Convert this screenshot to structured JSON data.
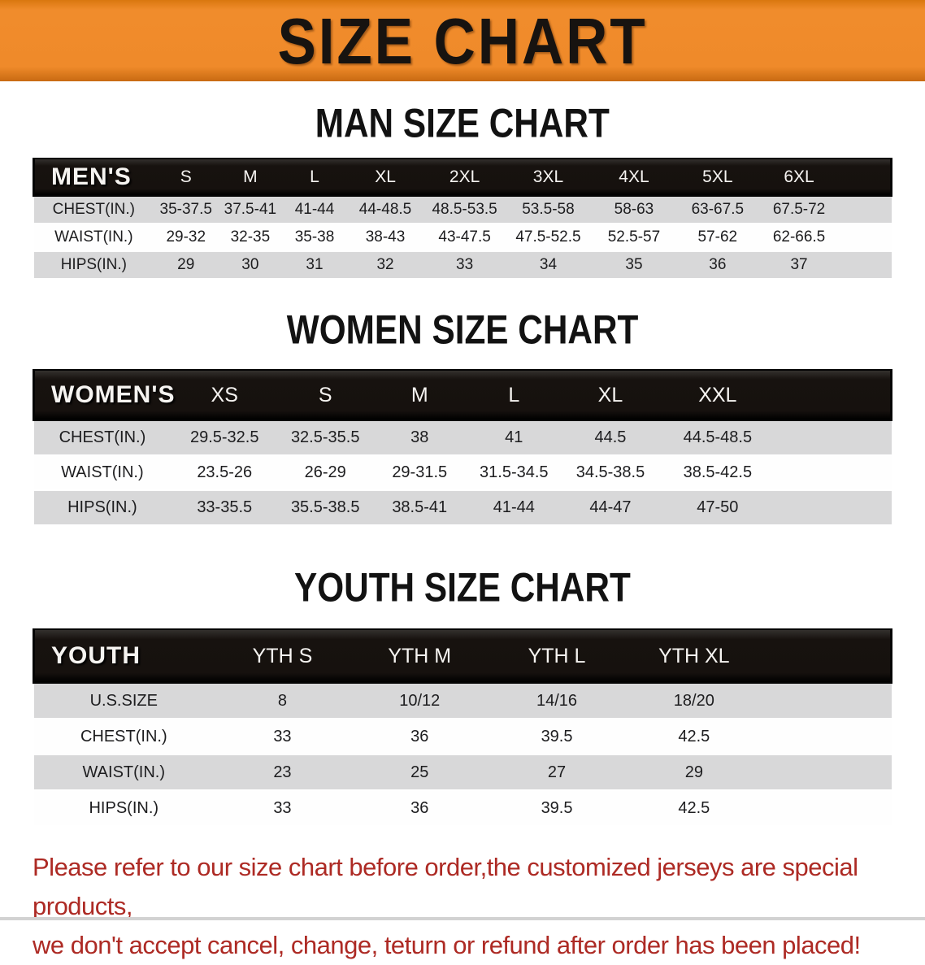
{
  "banner": {
    "title": "SIZE CHART"
  },
  "sections": [
    {
      "heading": "MAN SIZE CHART",
      "header_label": "MEN'S",
      "columns": [
        "S",
        "M",
        "L",
        "XL",
        "2XL",
        "3XL",
        "4XL",
        "5XL",
        "6XL"
      ],
      "rows": [
        {
          "label": "CHEST(IN.)",
          "values": [
            "35-37.5",
            "37.5-41",
            "41-44",
            "44-48.5",
            "48.5-53.5",
            "53.5-58",
            "58-63",
            "63-67.5",
            "67.5-72"
          ]
        },
        {
          "label": "WAIST(IN.)",
          "values": [
            "29-32",
            "32-35",
            "35-38",
            "38-43",
            "43-47.5",
            "47.5-52.5",
            "52.5-57",
            "57-62",
            "62-66.5"
          ]
        },
        {
          "label": "HIPS(IN.)",
          "values": [
            "29",
            "30",
            "31",
            "32",
            "33",
            "34",
            "35",
            "36",
            "37"
          ]
        }
      ]
    },
    {
      "heading": "WOMEN SIZE CHART",
      "header_label": "WOMEN'S",
      "columns": [
        "XS",
        "S",
        "M",
        "L",
        "XL",
        "XXL"
      ],
      "rows": [
        {
          "label": "CHEST(IN.)",
          "values": [
            "29.5-32.5",
            "32.5-35.5",
            "38",
            "41",
            "44.5",
            "44.5-48.5"
          ]
        },
        {
          "label": "WAIST(IN.)",
          "values": [
            "23.5-26",
            "26-29",
            "29-31.5",
            "31.5-34.5",
            "34.5-38.5",
            "38.5-42.5"
          ]
        },
        {
          "label": "HIPS(IN.)",
          "values": [
            "33-35.5",
            "35.5-38.5",
            "38.5-41",
            "41-44",
            "44-47",
            "47-50"
          ]
        }
      ]
    },
    {
      "heading": "YOUTH SIZE CHART",
      "header_label": "YOUTH",
      "columns": [
        "YTH S",
        "YTH M",
        "YTH L",
        "YTH XL"
      ],
      "rows": [
        {
          "label": "U.S.SIZE",
          "values": [
            "8",
            "10/12",
            "14/16",
            "18/20"
          ]
        },
        {
          "label": "CHEST(IN.)",
          "values": [
            "33",
            "36",
            "39.5",
            "42.5"
          ]
        },
        {
          "label": "WAIST(IN.)",
          "values": [
            "23",
            "25",
            "27",
            "29"
          ]
        },
        {
          "label": "HIPS(IN.)",
          "values": [
            "33",
            "36",
            "39.5",
            "42.5"
          ]
        }
      ]
    }
  ],
  "footer": {
    "line1": "Please refer to our size chart before order,the customized jerseys are special products,",
    "line2": "we don't accept cancel, change, teturn or refund after order has been placed!"
  },
  "colors": {
    "banner_orange": "#ef8a2a",
    "header_black": "#16110e",
    "row_gray": "#d8d8d9",
    "row_white": "#fefefe",
    "footer_red": "#ad2a24"
  }
}
